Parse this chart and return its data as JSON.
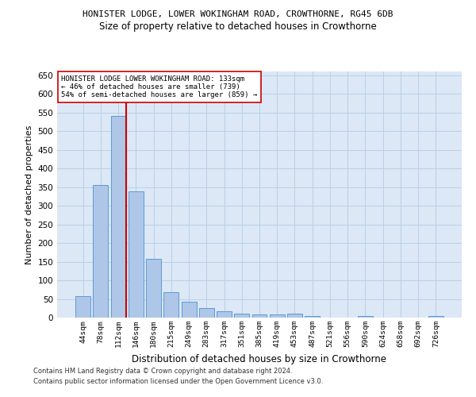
{
  "title1": "HONISTER LODGE, LOWER WOKINGHAM ROAD, CROWTHORNE, RG45 6DB",
  "title2": "Size of property relative to detached houses in Crowthorne",
  "xlabel": "Distribution of detached houses by size in Crowthorne",
  "ylabel": "Number of detached properties",
  "footer1": "Contains HM Land Registry data © Crown copyright and database right 2024.",
  "footer2": "Contains public sector information licensed under the Open Government Licence v3.0.",
  "categories": [
    "44sqm",
    "78sqm",
    "112sqm",
    "146sqm",
    "180sqm",
    "215sqm",
    "249sqm",
    "283sqm",
    "317sqm",
    "351sqm",
    "385sqm",
    "419sqm",
    "453sqm",
    "487sqm",
    "521sqm",
    "556sqm",
    "590sqm",
    "624sqm",
    "658sqm",
    "692sqm",
    "726sqm"
  ],
  "values": [
    58,
    355,
    540,
    338,
    157,
    69,
    42,
    25,
    16,
    10,
    9,
    9,
    10,
    4,
    0,
    0,
    5,
    0,
    0,
    0,
    5
  ],
  "bar_color": "#aec6e8",
  "bar_edge_color": "#5b9bd5",
  "highlight_bar_index": 2,
  "highlight_line_color": "#cc0000",
  "annotation_line1": "HONISTER LODGE LOWER WOKINGHAM ROAD: 133sqm",
  "annotation_line2": "← 46% of detached houses are smaller (739)",
  "annotation_line3": "54% of semi-detached houses are larger (859) →",
  "annotation_box_color": "#ffffff",
  "annotation_box_edge": "#cc0000",
  "ylim": [
    0,
    660
  ],
  "yticks": [
    0,
    50,
    100,
    150,
    200,
    250,
    300,
    350,
    400,
    450,
    500,
    550,
    600,
    650
  ],
  "bg_color": "#ffffff",
  "plot_bg_color": "#dce8f5",
  "grid_color": "#b8cfe8"
}
